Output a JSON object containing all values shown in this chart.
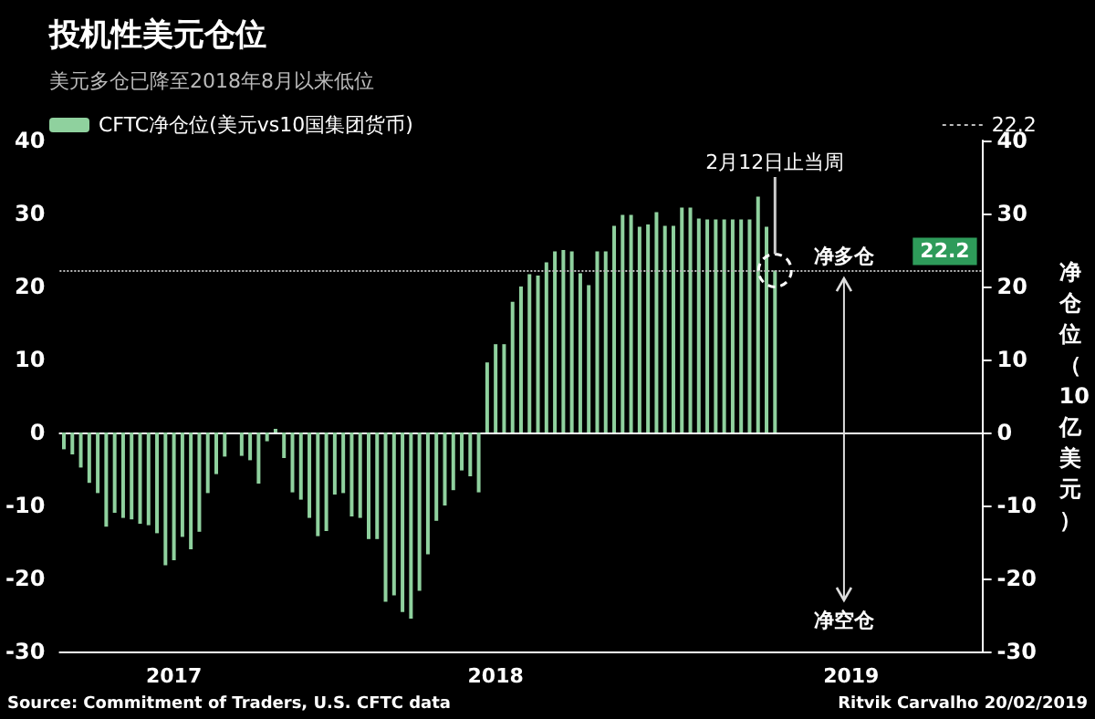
{
  "chart_data": {
    "type": "bar",
    "title": "投机性美元仓位",
    "subtitle": "美元多仓已降至2018年8月以来低位",
    "y2label": "净仓位（10亿美元）",
    "categories": [
      null,
      null,
      null,
      null,
      null,
      null,
      null,
      null,
      null,
      null,
      null,
      null,
      null,
      "2017",
      null,
      null,
      null,
      null,
      null,
      null,
      null,
      null,
      null,
      null,
      null,
      null,
      null,
      null,
      null,
      null,
      null,
      null,
      null,
      null,
      null,
      null,
      null,
      null,
      null,
      null,
      null,
      null,
      null,
      null,
      null,
      null,
      null,
      null,
      null,
      null,
      null,
      "2018",
      null,
      null,
      null,
      null,
      null,
      null,
      null,
      null,
      null,
      null,
      null,
      null,
      null,
      null,
      null,
      null,
      null,
      null,
      null,
      null,
      null,
      null,
      null,
      null,
      null,
      null,
      null,
      null,
      null,
      null,
      null,
      null,
      null,
      null,
      null,
      null,
      null,
      null,
      null,
      null,
      null,
      "2019",
      null,
      null,
      null,
      null,
      null,
      null,
      null,
      null,
      null,
      null,
      null,
      null,
      null,
      null,
      null
    ],
    "series": [
      {
        "name": "CFTC净仓位(美元vs10国集团货币)",
        "color": "#8fd19e",
        "values": [
          -2.3,
          -3,
          -4.8,
          -6.9,
          -8.3,
          -12.9,
          -11,
          -11.7,
          -11.9,
          -12.5,
          -12.7,
          -13.8,
          -18.2,
          -17.5,
          -14.3,
          -16,
          -13.6,
          -8.3,
          -5.7,
          -3.3,
          0,
          -3.2,
          -3.8,
          -7,
          -1.2,
          0.5,
          -3.5,
          -8.2,
          -9.2,
          -11.7,
          -14.2,
          -13.5,
          -8.5,
          -8.3,
          -11.5,
          -11.7,
          -14.6,
          -14.6,
          -23.2,
          -22.3,
          -24.6,
          -25.5,
          -21.7,
          -16.7,
          -12.1,
          -10,
          -7.9,
          -5.2,
          -6,
          -8.2,
          9.6,
          12.1,
          12.1,
          17.9,
          20,
          21.7,
          21.5,
          23.3,
          24.8,
          25,
          24.8,
          21.8,
          20.2,
          24.8,
          24.8,
          28.3,
          29.8,
          29.8,
          28.2,
          28.5,
          30.2,
          28.3,
          28.3,
          30.8,
          30.8,
          29.3,
          29.2,
          29.2,
          29.2,
          29.2,
          29.2,
          29.2,
          32.3,
          28.2,
          22.2,
          null,
          null,
          null,
          null,
          null,
          null,
          null,
          null,
          null,
          null,
          null,
          null,
          null,
          null,
          null,
          null,
          null,
          null,
          null,
          null,
          null,
          null,
          null,
          null
        ]
      }
    ],
    "ylim": [
      -30,
      40
    ],
    "yticks": [
      -30,
      -20,
      -10,
      0,
      10,
      20,
      30,
      40
    ],
    "y2lim": [
      -30,
      40
    ],
    "y2ticks": [
      -30,
      -20,
      -10,
      0,
      10,
      20,
      30,
      40
    ],
    "ref_lines": [
      {
        "axis": "y",
        "value": 22.2,
        "label": "22.2",
        "color": "#bbbbbb",
        "line_style": "dotted"
      }
    ],
    "legend": "top left",
    "annotations": [
      {
        "text": "2月12日止当周",
        "y": 22.2
      },
      "净多仓",
      "净空仓",
      "Source: Commitment of Traders, U.S. CFTC data",
      "Ritvik Carvalho 20/02/2019"
    ]
  }
}
